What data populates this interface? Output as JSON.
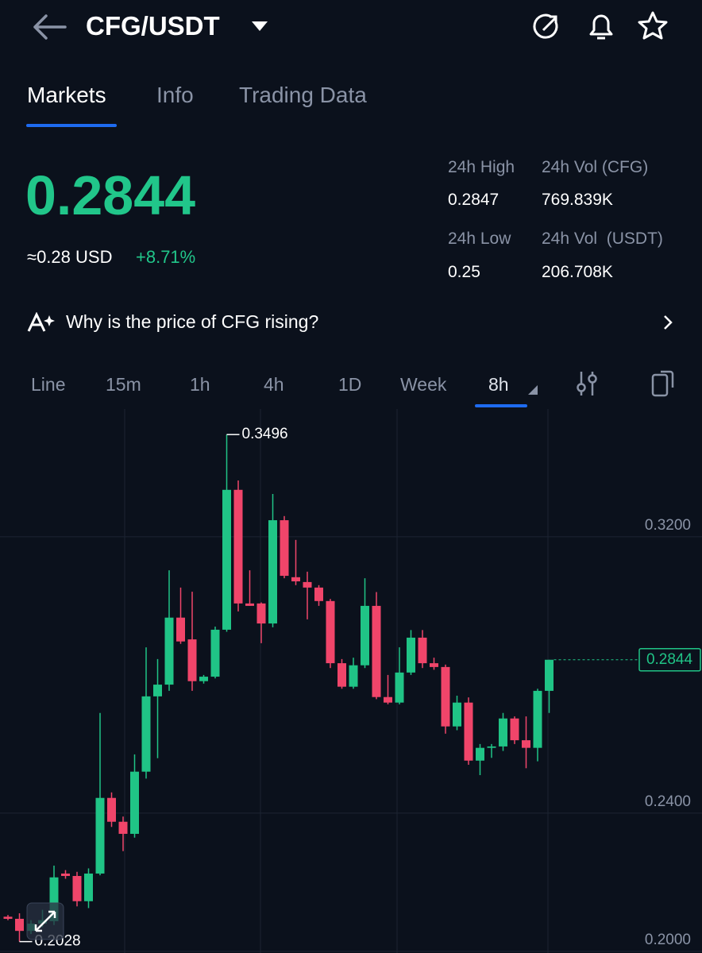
{
  "header": {
    "title": "CFG/USDT"
  },
  "tabs": [
    "Markets",
    "Info",
    "Trading Data"
  ],
  "price": {
    "last": "0.2844",
    "usd": "≈0.28 USD",
    "change": "+8.71%"
  },
  "stats": [
    {
      "label": "24h High",
      "value": "0.2847"
    },
    {
      "label": "24h Vol (CFG)",
      "value": "769.839K"
    },
    {
      "label": "24h Low",
      "value": "0.25"
    },
    {
      "label": "24h Vol  (USDT)",
      "value": "206.708K"
    }
  ],
  "insight": "Why is the price of CFG rising?",
  "intervals": [
    "Line",
    "15m",
    "1h",
    "4h",
    "1D",
    "Week",
    "8h"
  ],
  "chart_data": {
    "type": "candlestick",
    "up_color": "#20c486",
    "down_color": "#f0456a",
    "ylim": [
      0.1995,
      0.357
    ],
    "yticks": [
      {
        "value": 0.32,
        "label": "0.3200"
      },
      {
        "value": 0.24,
        "label": "0.2400"
      },
      {
        "value": 0.2,
        "label": "0.2000"
      }
    ],
    "grid": true,
    "max_price": 0.3496,
    "min_price": 0.2028,
    "last_price": 0.2844,
    "series": {
      "open": [
        0.21,
        0.2094,
        0.2059,
        0.208,
        0.2087,
        0.2225,
        0.2218,
        0.2145,
        0.2225,
        0.2444,
        0.2375,
        0.234,
        0.252,
        0.2738,
        0.2772,
        0.2966,
        0.2903,
        0.2782,
        0.2795,
        0.2931,
        0.3336,
        0.3007,
        0.3007,
        0.2949,
        0.3248,
        0.3083,
        0.3069,
        0.3053,
        0.3014,
        0.2834,
        0.2766,
        0.2828,
        0.3,
        0.2736,
        0.272,
        0.2807,
        0.2908,
        0.2834,
        0.2823,
        0.2651,
        0.272,
        0.2552,
        0.2589,
        0.2593,
        0.2674,
        0.2611,
        0.2589,
        0.2754
      ],
      "high": [
        0.2105,
        0.211,
        0.209,
        0.212,
        0.2248,
        0.2235,
        0.223,
        0.224,
        0.269,
        0.246,
        0.239,
        0.257,
        0.288,
        0.2846,
        0.3103,
        0.3053,
        0.3041,
        0.28,
        0.294,
        0.3496,
        0.3363,
        0.3103,
        0.301,
        0.3324,
        0.326,
        0.3191,
        0.3099,
        0.306,
        0.302,
        0.2846,
        0.285,
        0.308,
        0.304,
        0.28,
        0.288,
        0.293,
        0.293,
        0.285,
        0.283,
        0.274,
        0.2735,
        0.26,
        0.26,
        0.269,
        0.268,
        0.268,
        0.276,
        0.2844
      ],
      "low": [
        0.209,
        0.2028,
        0.205,
        0.207,
        0.2076,
        0.221,
        0.213,
        0.2125,
        0.222,
        0.236,
        0.229,
        0.2329,
        0.25,
        0.2559,
        0.2754,
        0.289,
        0.2754,
        0.2775,
        0.279,
        0.2925,
        0.2984,
        0.3,
        0.2892,
        0.2938,
        0.308,
        0.306,
        0.2961,
        0.3,
        0.282,
        0.276,
        0.276,
        0.282,
        0.273,
        0.2715,
        0.2715,
        0.28,
        0.282,
        0.2815,
        0.263,
        0.264,
        0.254,
        0.251,
        0.256,
        0.258,
        0.26,
        0.253,
        0.255,
        0.269
      ],
      "close": [
        0.2094,
        0.2059,
        0.208,
        0.209,
        0.2214,
        0.2218,
        0.2145,
        0.2225,
        0.2444,
        0.2375,
        0.234,
        0.252,
        0.2738,
        0.2772,
        0.2966,
        0.2897,
        0.2782,
        0.2795,
        0.2931,
        0.3336,
        0.3007,
        0.3,
        0.2949,
        0.3248,
        0.3087,
        0.3071,
        0.3053,
        0.3014,
        0.2834,
        0.2766,
        0.2828,
        0.3,
        0.2736,
        0.272,
        0.2807,
        0.2908,
        0.2834,
        0.2823,
        0.2651,
        0.272,
        0.2552,
        0.2589,
        0.2593,
        0.2674,
        0.2611,
        0.2589,
        0.2754,
        0.2844
      ]
    }
  }
}
